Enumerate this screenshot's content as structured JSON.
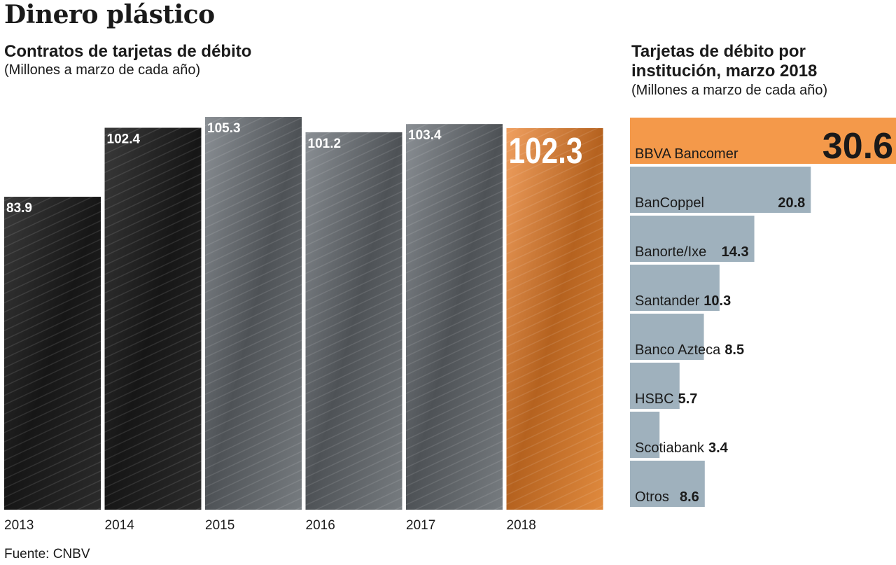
{
  "title": "Dinero plástico",
  "source": "Fuente: CNBV",
  "colors": {
    "bar_dark": "#1b1b1b",
    "bar_mid": "#6f7478",
    "bar_highlight": "#ee8d3f",
    "hbar": "#9fb1bd",
    "hbar_highlight": "#f4994a"
  },
  "chart_data": [
    {
      "type": "bar",
      "title": "Contratos de tarjetas de débito",
      "subtitle": "(Millones a marzo de cada año)",
      "categories": [
        "2013",
        "2014",
        "2015",
        "2016",
        "2017",
        "2018"
      ],
      "values": [
        83.9,
        102.4,
        105.3,
        101.2,
        103.4,
        102.3
      ],
      "value_labels": [
        "83.9",
        "102.4",
        "105.3",
        "101.2",
        "103.4",
        "102.3"
      ],
      "highlight": "2018",
      "ylim": [
        0,
        110
      ],
      "grid": false
    },
    {
      "type": "bar",
      "orientation": "horizontal",
      "title": "Tarjetas de débito por institución, marzo 2018",
      "subtitle": "(Millones a marzo de cada año)",
      "categories": [
        "BBVA Bancomer",
        "BanCoppel",
        "Banorte/Ixe",
        "Santander",
        "Banco Azteca",
        "HSBC",
        "Scotiabank",
        "Otros"
      ],
      "values": [
        30.6,
        20.8,
        14.3,
        10.3,
        8.5,
        5.7,
        3.4,
        8.6
      ],
      "value_labels": [
        "30.6",
        "20.8",
        "14.3",
        "10.3",
        "8.5",
        "5.7",
        "3.4",
        "8.6"
      ],
      "highlight": "BBVA Bancomer",
      "xlim": [
        0,
        30.6
      ],
      "grid": false
    }
  ]
}
